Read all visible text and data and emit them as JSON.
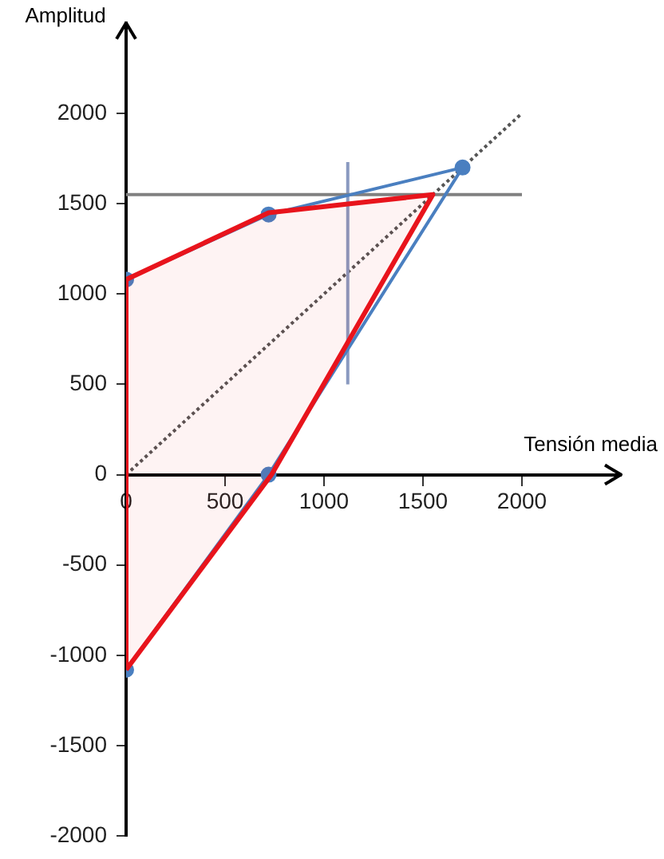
{
  "chart_data": {
    "type": "line",
    "xlabel": "Tensión media",
    "ylabel": "Amplitud",
    "xlim": [
      0,
      2500
    ],
    "ylim": [
      -2000,
      2500
    ],
    "xticks": [
      0,
      500,
      1000,
      1500,
      2000
    ],
    "yticks": [
      -2000,
      -1500,
      -1000,
      -500,
      0,
      500,
      1000,
      1500,
      2000
    ],
    "legend": false,
    "series": [
      {
        "type": "area",
        "color": "#e8141c",
        "x": [
          0,
          0,
          720,
          1550,
          735,
          0
        ],
        "values": [
          -1080,
          1080,
          1450,
          1550,
          0,
          -1080
        ],
        "marker": "none"
      },
      {
        "type": "line",
        "color": "#4a7fc0",
        "x": [
          0,
          720,
          1700,
          720,
          0
        ],
        "values": [
          -1080,
          0,
          1700,
          1440,
          1080
        ],
        "marker": "circle"
      },
      {
        "type": "line",
        "color": "#808080",
        "x": [
          0,
          2000
        ],
        "values": [
          1550,
          1550
        ],
        "marker": "none"
      },
      {
        "type": "line",
        "color": "#8a9ac0",
        "x": [
          1120,
          1120
        ],
        "values": [
          500,
          1730
        ],
        "marker": "none"
      },
      {
        "type": "line",
        "color": "#555555",
        "x": [
          0,
          2000
        ],
        "values": [
          0,
          2000
        ],
        "marker": "none",
        "line_style": "dotted"
      }
    ]
  }
}
